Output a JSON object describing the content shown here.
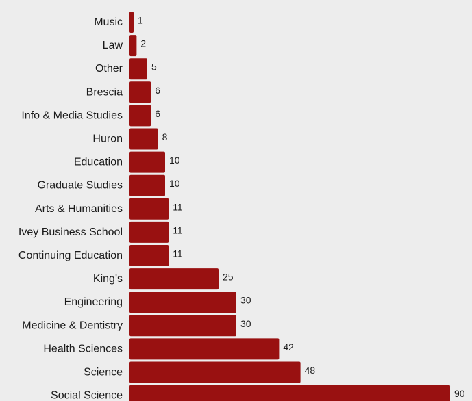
{
  "chart_data": {
    "type": "bar",
    "orientation": "horizontal",
    "categories": [
      "Music",
      "Law",
      "Other",
      "Brescia",
      "Info & Media Studies",
      "Huron",
      "Education",
      "Graduate Studies",
      "Arts & Humanities",
      "Ivey Business School",
      "Continuing Education",
      "King's",
      "Engineering",
      "Medicine & Dentistry",
      "Health Sciences",
      "Science",
      "Social Science"
    ],
    "values": [
      1,
      2,
      5,
      6,
      6,
      8,
      10,
      10,
      11,
      11,
      11,
      25,
      30,
      30,
      42,
      48,
      90
    ],
    "xlim": [
      0,
      90
    ],
    "grid": false,
    "legend": "none",
    "colors": {
      "bar": "#991111",
      "background": "#ededed",
      "text": "#1a1a1a"
    }
  }
}
